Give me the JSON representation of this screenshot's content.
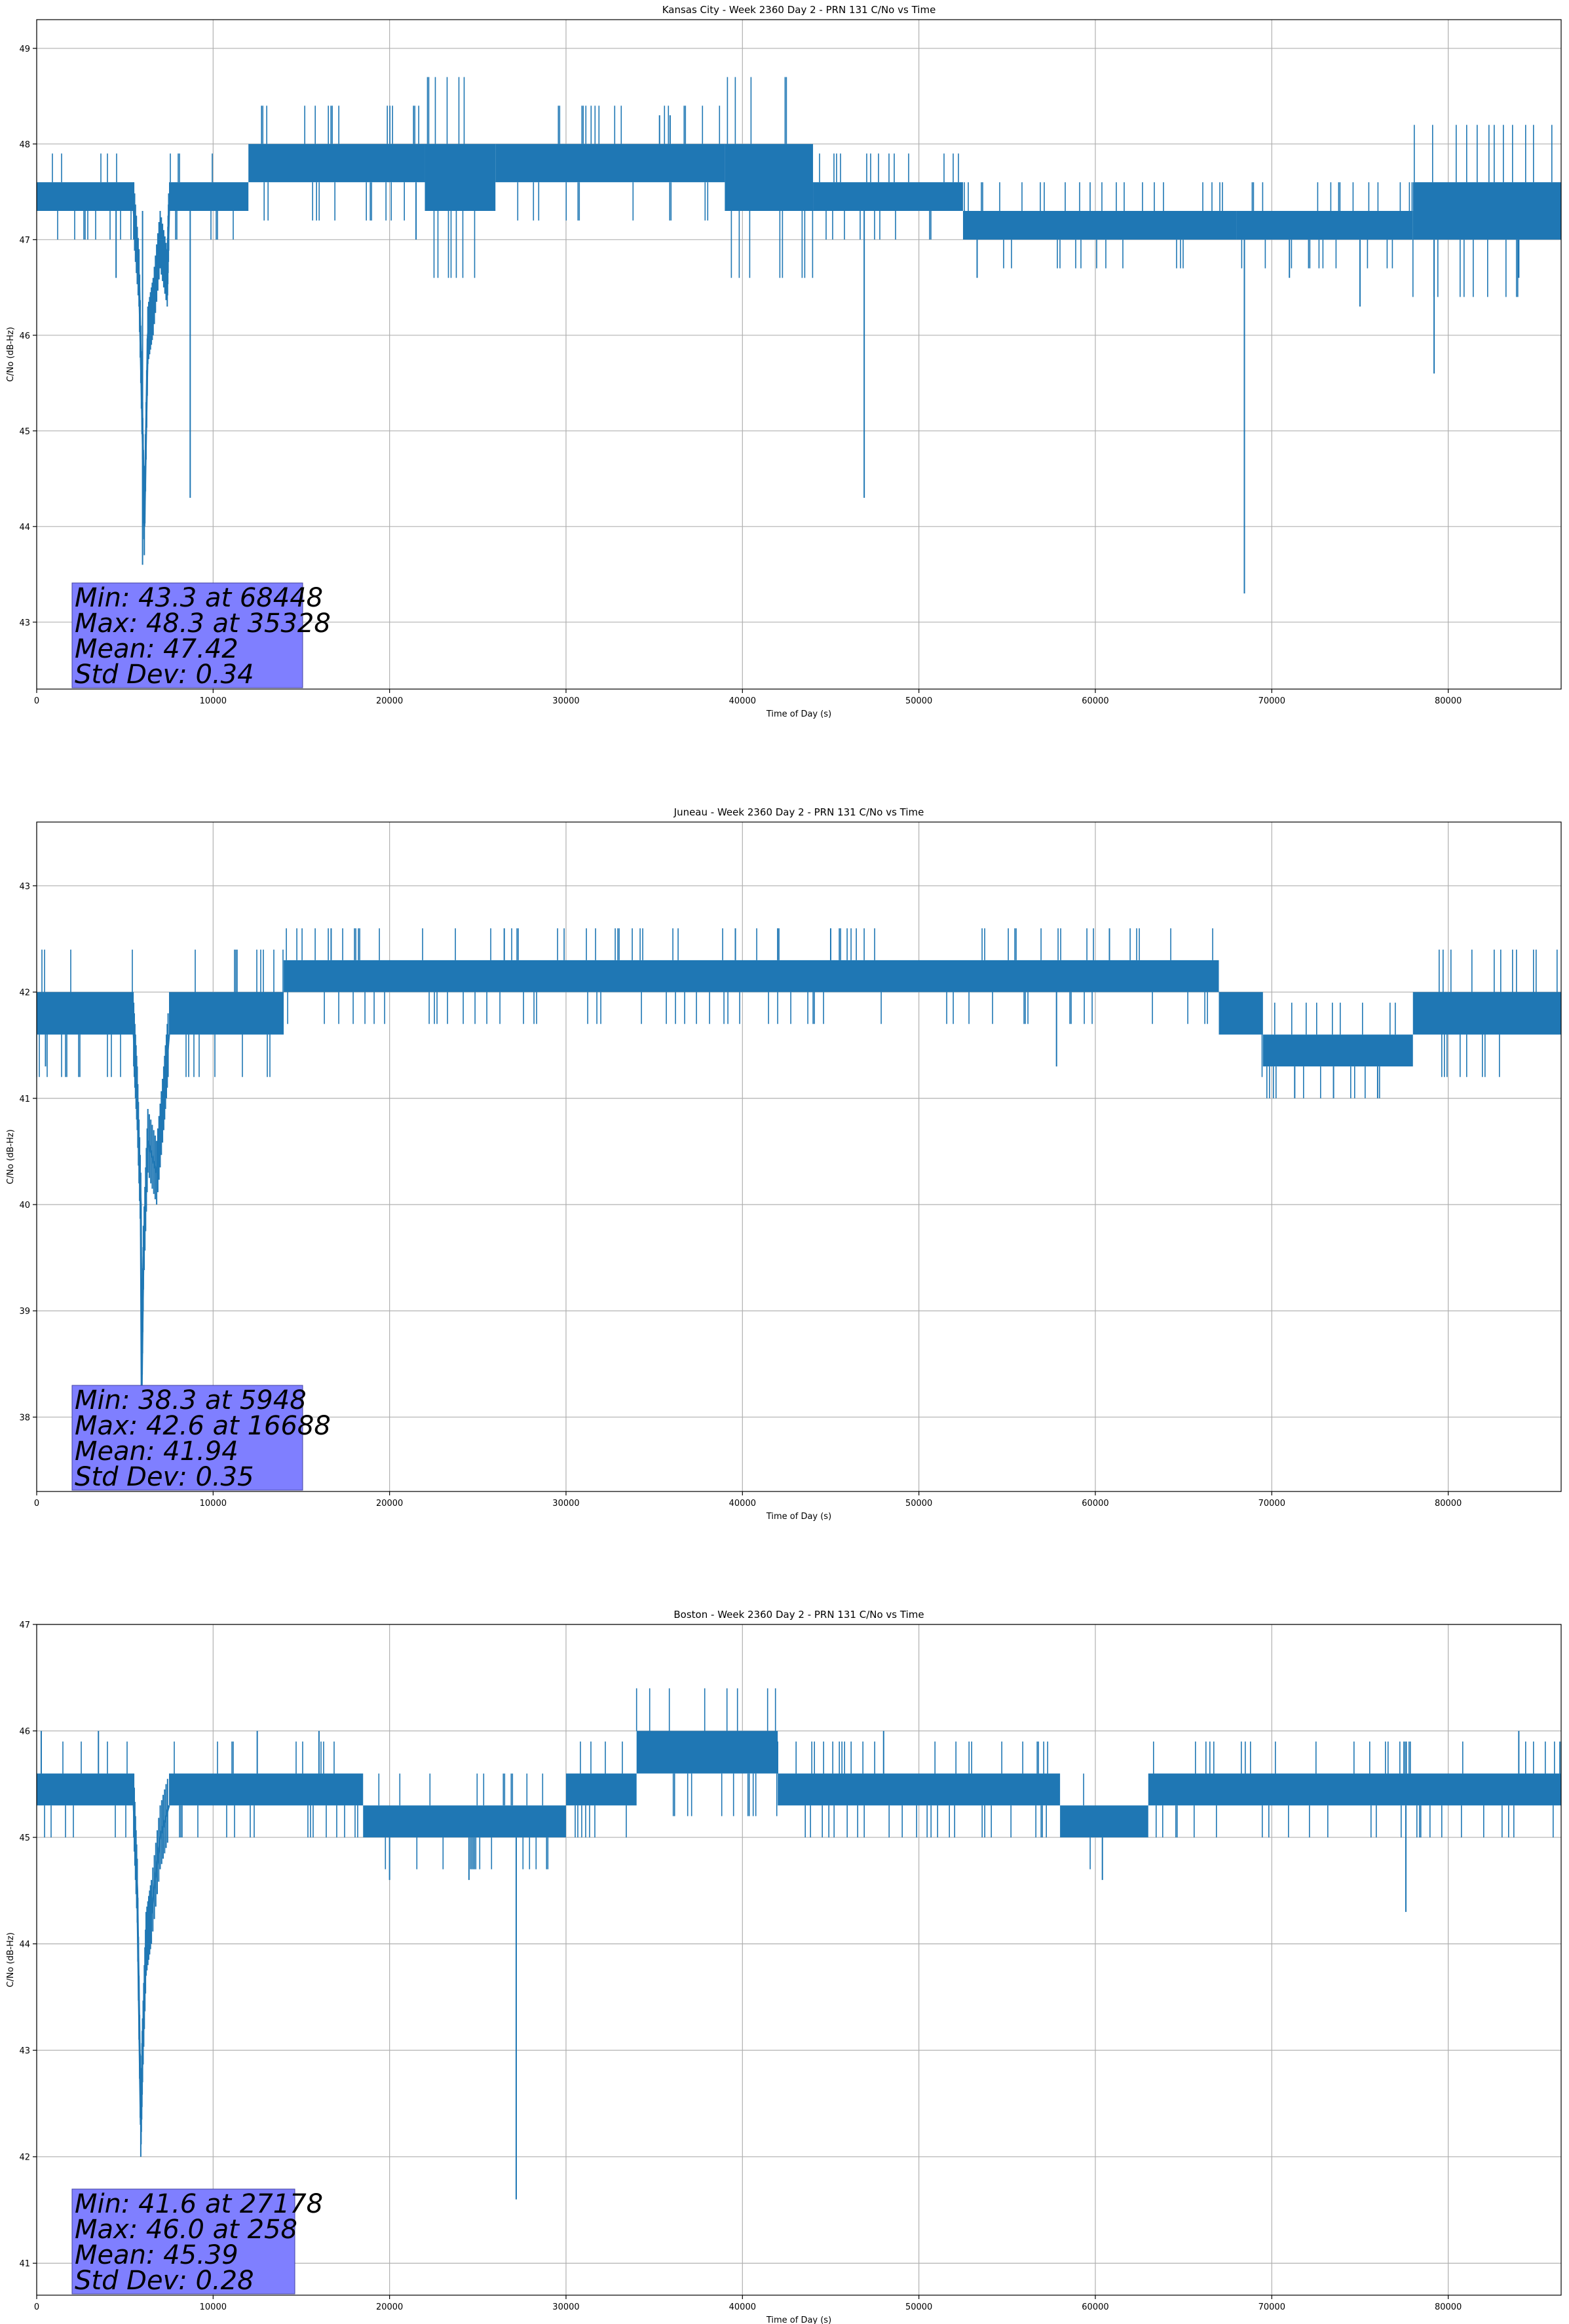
{
  "chart_data": [
    {
      "type": "line",
      "title": "Kansas City - Week 2360 Day 2 - PRN 131 C/No vs Time",
      "xlabel": "Time of Day (s)",
      "ylabel": "C/No (dB-Hz)",
      "xlim": [
        0,
        86400
      ],
      "ylim": [
        42.3,
        49.3
      ],
      "xticks": [
        0,
        10000,
        20000,
        30000,
        40000,
        50000,
        60000,
        70000,
        80000
      ],
      "yticks": [
        43,
        44,
        45,
        46,
        47,
        48,
        49
      ],
      "grid": true,
      "color": "#1f77b4",
      "series": [
        {
          "name": "C/No",
          "bands": [
            {
              "x": [
                0,
                5500
              ],
              "y": [
                47.3,
                47.6
              ]
            },
            {
              "x": [
                7500,
                12000
              ],
              "y": [
                47.3,
                47.6
              ]
            },
            {
              "x": [
                12000,
                22000
              ],
              "y": [
                47.6,
                48.0
              ]
            },
            {
              "x": [
                22000,
                26000
              ],
              "y": [
                47.3,
                48.0
              ]
            },
            {
              "x": [
                26000,
                39000
              ],
              "y": [
                47.6,
                48.0
              ]
            },
            {
              "x": [
                39000,
                44000
              ],
              "y": [
                47.3,
                48.0
              ]
            },
            {
              "x": [
                44000,
                52500
              ],
              "y": [
                47.3,
                47.6
              ]
            },
            {
              "x": [
                52500,
                68000
              ],
              "y": [
                47.0,
                47.3
              ]
            },
            {
              "x": [
                68000,
                78000
              ],
              "y": [
                47.0,
                47.3
              ]
            },
            {
              "x": [
                78000,
                86400
              ],
              "y": [
                47.0,
                47.6
              ]
            }
          ],
          "spikes": [
            {
              "x": 4500,
              "y": 46.6
            },
            {
              "x": 6000,
              "y": 43.6
            },
            {
              "x": 8700,
              "y": 44.3
            },
            {
              "x": 21500,
              "y": 47.0
            },
            {
              "x": 35300,
              "y": 48.3
            },
            {
              "x": 35900,
              "y": 48.3
            },
            {
              "x": 46900,
              "y": 44.3
            },
            {
              "x": 53300,
              "y": 46.6
            },
            {
              "x": 68448,
              "y": 43.3
            },
            {
              "x": 71000,
              "y": 46.6
            },
            {
              "x": 75000,
              "y": 46.3
            },
            {
              "x": 79200,
              "y": 45.6
            },
            {
              "x": 84000,
              "y": 46.6
            }
          ],
          "dip": [
            [
              5500,
              47.3
            ],
            [
              5800,
              46.6
            ],
            [
              6000,
              45.0
            ],
            [
              6100,
              44.0
            ],
            [
              6300,
              46.0
            ],
            [
              6600,
              46.3
            ],
            [
              7000,
              47.0
            ],
            [
              7400,
              46.6
            ],
            [
              7500,
              47.3
            ]
          ]
        }
      ],
      "stats": {
        "min": "Min: 43.3 at 68448",
        "max": "Max: 48.3 at 35328",
        "mean": "Mean: 47.42",
        "std": "Std Dev: 0.34"
      }
    },
    {
      "type": "line",
      "title": "Juneau - Week 2360 Day 2 - PRN 131 C/No vs Time",
      "xlabel": "Time of Day (s)",
      "ylabel": "C/No (dB-Hz)",
      "xlim": [
        0,
        86400
      ],
      "ylim": [
        37.3,
        43.6
      ],
      "xticks": [
        0,
        10000,
        20000,
        30000,
        40000,
        50000,
        60000,
        70000,
        80000
      ],
      "yticks": [
        38,
        39,
        40,
        41,
        42,
        43
      ],
      "grid": true,
      "color": "#1f77b4",
      "series": [
        {
          "name": "C/No",
          "bands": [
            {
              "x": [
                0,
                5500
              ],
              "y": [
                41.6,
                42.0
              ]
            },
            {
              "x": [
                7500,
                14000
              ],
              "y": [
                41.6,
                42.0
              ]
            },
            {
              "x": [
                14000,
                67000
              ],
              "y": [
                42.0,
                42.3
              ]
            },
            {
              "x": [
                67000,
                69500
              ],
              "y": [
                41.6,
                42.0
              ]
            },
            {
              "x": [
                69500,
                78000
              ],
              "y": [
                41.3,
                41.6
              ]
            },
            {
              "x": [
                78000,
                86400
              ],
              "y": [
                41.6,
                42.0
              ]
            }
          ],
          "spikes": [
            {
              "x": 500,
              "y": 41.3
            },
            {
              "x": 16688,
              "y": 42.6
            },
            {
              "x": 26500,
              "y": 42.6
            },
            {
              "x": 39600,
              "y": 42.6
            },
            {
              "x": 42000,
              "y": 42.6
            },
            {
              "x": 45000,
              "y": 42.6
            },
            {
              "x": 57800,
              "y": 41.3
            },
            {
              "x": 60800,
              "y": 42.6
            },
            {
              "x": 71300,
              "y": 41.0
            },
            {
              "x": 73500,
              "y": 41.0
            },
            {
              "x": 76000,
              "y": 41.0
            }
          ],
          "dip": [
            [
              5500,
              41.6
            ],
            [
              5700,
              41.0
            ],
            [
              5900,
              40.0
            ],
            [
              5948,
              38.3
            ],
            [
              6050,
              39.5
            ],
            [
              6300,
              40.6
            ],
            [
              6800,
              40.3
            ],
            [
              7200,
              41.0
            ],
            [
              7500,
              41.6
            ]
          ]
        }
      ],
      "stats": {
        "min": "Min: 38.3 at 5948",
        "max": "Max: 42.6 at 16688",
        "mean": "Mean: 41.94",
        "std": "Std Dev: 0.35"
      }
    },
    {
      "type": "line",
      "title": "Boston - Week 2360 Day 2 - PRN 131 C/No vs Time",
      "xlabel": "Time of Day (s)",
      "ylabel": "C/No (dB-Hz)",
      "xlim": [
        0,
        86400
      ],
      "ylim": [
        40.7,
        47.0
      ],
      "xticks": [
        0,
        10000,
        20000,
        30000,
        40000,
        50000,
        60000,
        70000,
        80000
      ],
      "yticks": [
        41,
        42,
        43,
        44,
        45,
        46,
        47
      ],
      "grid": true,
      "color": "#1f77b4",
      "series": [
        {
          "name": "C/No",
          "bands": [
            {
              "x": [
                0,
                5500
              ],
              "y": [
                45.3,
                45.6
              ]
            },
            {
              "x": [
                7500,
                18500
              ],
              "y": [
                45.3,
                45.6
              ]
            },
            {
              "x": [
                18500,
                30000
              ],
              "y": [
                45.0,
                45.3
              ]
            },
            {
              "x": [
                30000,
                34000
              ],
              "y": [
                45.3,
                45.6
              ]
            },
            {
              "x": [
                34000,
                42000
              ],
              "y": [
                45.6,
                46.0
              ]
            },
            {
              "x": [
                42000,
                58000
              ],
              "y": [
                45.3,
                45.6
              ]
            },
            {
              "x": [
                58000,
                63000
              ],
              "y": [
                45.0,
                45.3
              ]
            },
            {
              "x": [
                63000,
                86400
              ],
              "y": [
                45.3,
                45.6
              ]
            }
          ],
          "spikes": [
            {
              "x": 258,
              "y": 46.0
            },
            {
              "x": 3500,
              "y": 46.0
            },
            {
              "x": 12500,
              "y": 46.0
            },
            {
              "x": 16000,
              "y": 46.0
            },
            {
              "x": 20000,
              "y": 44.6
            },
            {
              "x": 24500,
              "y": 44.6
            },
            {
              "x": 27178,
              "y": 41.6
            },
            {
              "x": 48000,
              "y": 46.0
            },
            {
              "x": 60400,
              "y": 44.6
            },
            {
              "x": 77600,
              "y": 44.3
            },
            {
              "x": 84000,
              "y": 46.0
            }
          ],
          "dip": [
            [
              5500,
              45.3
            ],
            [
              5700,
              44.5
            ],
            [
              5900,
              42.3
            ],
            [
              6000,
              43.0
            ],
            [
              6200,
              44.0
            ],
            [
              6500,
              44.3
            ],
            [
              7000,
              45.0
            ],
            [
              7500,
              45.3
            ]
          ]
        }
      ],
      "stats": {
        "min": "Min: 41.6 at 27178",
        "max": "Max: 46.0 at 258",
        "mean": "Mean: 45.39",
        "std": "Std Dev: 0.28"
      }
    }
  ]
}
